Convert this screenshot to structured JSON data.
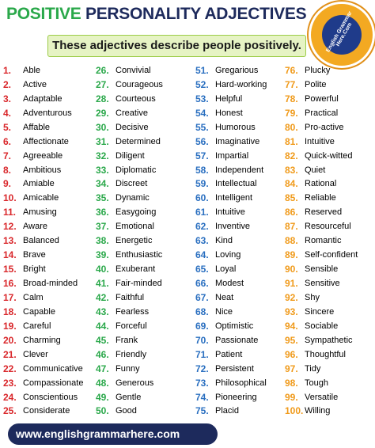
{
  "header": {
    "title_highlight": "POSITIVE",
    "title_rest": "PERSONALITY  ADJECTIVES",
    "subtitle": "These adjectives describe people positively.",
    "logo_text": "English Grammar Here.Com"
  },
  "columns": [
    {
      "items": [
        {
          "number": "1.",
          "word": "Able"
        },
        {
          "number": "2.",
          "word": "Active"
        },
        {
          "number": "3.",
          "word": "Adaptable"
        },
        {
          "number": "4.",
          "word": "Adventurous"
        },
        {
          "number": "5.",
          "word": "Affable"
        },
        {
          "number": "6.",
          "word": "Affectionate"
        },
        {
          "number": "7.",
          "word": "Agreeable"
        },
        {
          "number": "8.",
          "word": "Ambitious"
        },
        {
          "number": "9.",
          "word": "Amiable"
        },
        {
          "number": "10.",
          "word": "Amicable"
        },
        {
          "number": "11.",
          "word": "Amusing"
        },
        {
          "number": "12.",
          "word": "Aware"
        },
        {
          "number": "13.",
          "word": "Balanced"
        },
        {
          "number": "14.",
          "word": "Brave"
        },
        {
          "number": "15.",
          "word": "Bright"
        },
        {
          "number": "16.",
          "word": "Broad-minded"
        },
        {
          "number": "17.",
          "word": "Calm"
        },
        {
          "number": "18.",
          "word": "Capable"
        },
        {
          "number": "19.",
          "word": "Careful"
        },
        {
          "number": "20.",
          "word": "Charming"
        },
        {
          "number": "21.",
          "word": "Clever"
        },
        {
          "number": "22.",
          "word": "Communicative"
        },
        {
          "number": "23.",
          "word": "Compassionate"
        },
        {
          "number": "24.",
          "word": "Conscientious"
        },
        {
          "number": "25.",
          "word": "Considerate"
        }
      ]
    },
    {
      "items": [
        {
          "number": "26.",
          "word": "Convivial"
        },
        {
          "number": "27.",
          "word": "Courageous"
        },
        {
          "number": "28.",
          "word": "Courteous"
        },
        {
          "number": "29.",
          "word": "Creative"
        },
        {
          "number": "30.",
          "word": "Decisive"
        },
        {
          "number": "31.",
          "word": "Determined"
        },
        {
          "number": "32.",
          "word": "Diligent"
        },
        {
          "number": "33.",
          "word": "Diplomatic"
        },
        {
          "number": "34.",
          "word": "Discreet"
        },
        {
          "number": "35.",
          "word": "Dynamic"
        },
        {
          "number": "36.",
          "word": "Easygoing"
        },
        {
          "number": "37.",
          "word": "Emotional"
        },
        {
          "number": "38.",
          "word": "Energetic"
        },
        {
          "number": "39.",
          "word": "Enthusiastic"
        },
        {
          "number": "40.",
          "word": "Exuberant"
        },
        {
          "number": "41.",
          "word": "Fair-minded"
        },
        {
          "number": "42.",
          "word": "Faithful"
        },
        {
          "number": "43.",
          "word": "Fearless"
        },
        {
          "number": "44.",
          "word": "Forceful"
        },
        {
          "number": "45.",
          "word": "Frank"
        },
        {
          "number": "46.",
          "word": "Friendly"
        },
        {
          "number": "47.",
          "word": "Funny"
        },
        {
          "number": "48.",
          "word": "Generous"
        },
        {
          "number": "49.",
          "word": "Gentle"
        },
        {
          "number": "50.",
          "word": "Good"
        }
      ]
    },
    {
      "items": [
        {
          "number": "51.",
          "word": "Gregarious"
        },
        {
          "number": "52.",
          "word": "Hard-working"
        },
        {
          "number": "53.",
          "word": "Helpful"
        },
        {
          "number": "54.",
          "word": "Honest"
        },
        {
          "number": "55.",
          "word": "Humorous"
        },
        {
          "number": "56.",
          "word": "Imaginative"
        },
        {
          "number": "57.",
          "word": "Impartial"
        },
        {
          "number": "58.",
          "word": "Independent"
        },
        {
          "number": "59.",
          "word": "Intellectual"
        },
        {
          "number": "60.",
          "word": "Intelligent"
        },
        {
          "number": "61.",
          "word": "Intuitive"
        },
        {
          "number": "62.",
          "word": "Inventive"
        },
        {
          "number": "63.",
          "word": "Kind"
        },
        {
          "number": "64.",
          "word": "Loving"
        },
        {
          "number": "65.",
          "word": "Loyal"
        },
        {
          "number": "66.",
          "word": "Modest"
        },
        {
          "number": "67.",
          "word": "Neat"
        },
        {
          "number": "68.",
          "word": "Nice"
        },
        {
          "number": "69.",
          "word": "Optimistic"
        },
        {
          "number": "70.",
          "word": "Passionate"
        },
        {
          "number": "71.",
          "word": "Patient"
        },
        {
          "number": "72.",
          "word": "Persistent"
        },
        {
          "number": "73.",
          "word": "Philosophical"
        },
        {
          "number": "74.",
          "word": "Pioneering"
        },
        {
          "number": "75.",
          "word": "Placid"
        }
      ]
    },
    {
      "items": [
        {
          "number": "76.",
          "word": "Plucky"
        },
        {
          "number": "77.",
          "word": "Polite"
        },
        {
          "number": "78.",
          "word": "Powerful"
        },
        {
          "number": "79.",
          "word": "Practical"
        },
        {
          "number": "80.",
          "word": "Pro-active"
        },
        {
          "number": "81.",
          "word": "Intuitive"
        },
        {
          "number": "82.",
          "word": "Quick-witted"
        },
        {
          "number": "83.",
          "word": "Quiet"
        },
        {
          "number": "84.",
          "word": "Rational"
        },
        {
          "number": "85.",
          "word": "Reliable"
        },
        {
          "number": "86.",
          "word": "Reserved"
        },
        {
          "number": "87.",
          "word": "Resourceful"
        },
        {
          "number": "88.",
          "word": "Romantic"
        },
        {
          "number": "89.",
          "word": "Self-confident"
        },
        {
          "number": "90.",
          "word": "Sensible"
        },
        {
          "number": "91.",
          "word": "Sensitive"
        },
        {
          "number": "92.",
          "word": "Shy"
        },
        {
          "number": "93.",
          "word": "Sincere"
        },
        {
          "number": "94.",
          "word": "Sociable"
        },
        {
          "number": "95.",
          "word": "Sympathetic"
        },
        {
          "number": "96.",
          "word": "Thoughtful"
        },
        {
          "number": "97.",
          "word": "Tidy"
        },
        {
          "number": "98.",
          "word": "Tough"
        },
        {
          "number": "99.",
          "word": "Versatile"
        },
        {
          "number": "100.",
          "word": "Willing"
        }
      ]
    }
  ],
  "footer": {
    "url": "www.englishgrammarhere.com"
  }
}
